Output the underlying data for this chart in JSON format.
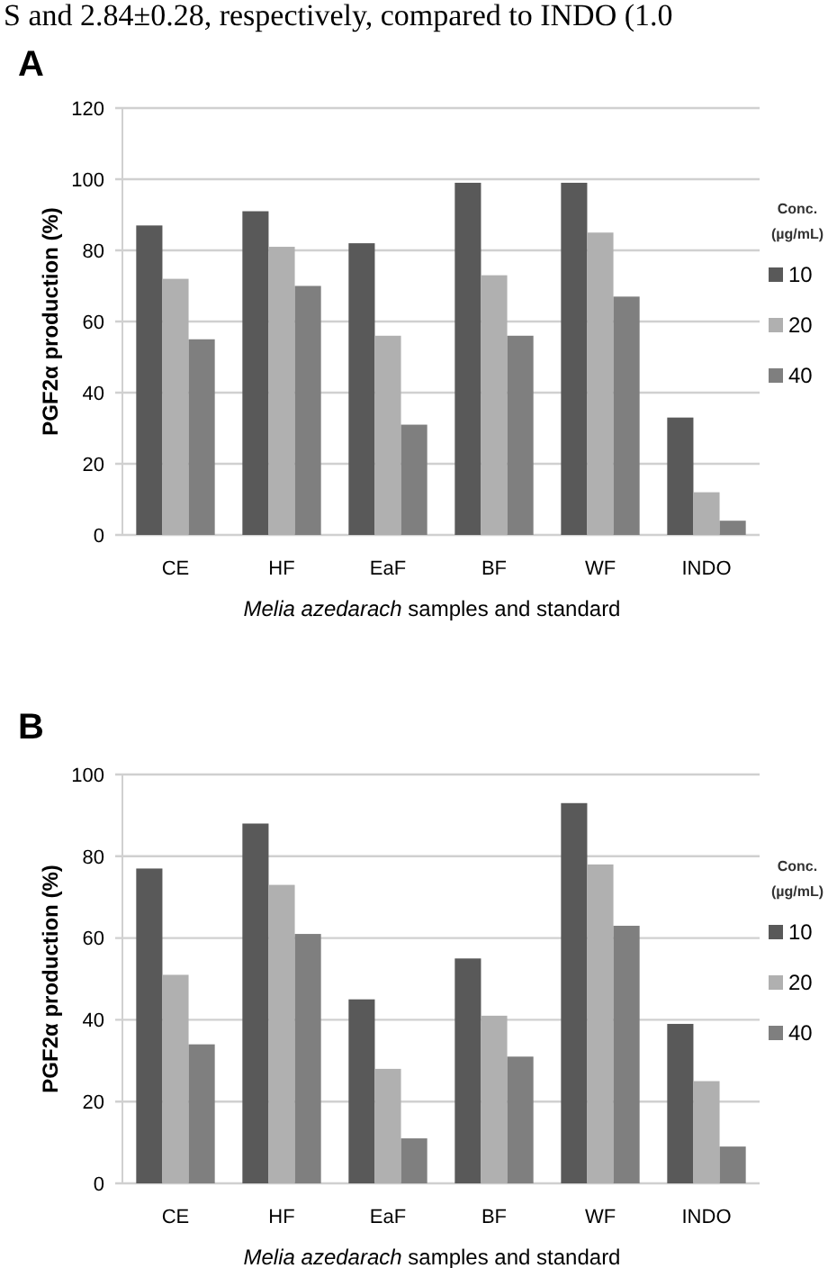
{
  "chart_data": [
    {
      "type": "bar",
      "title": "A",
      "annotations": [
        "S and 2.84±0.28, respectively, compared to INDO (1.0"
      ],
      "xlabel": "Melia azedarach samples and standard",
      "ylabel": "PGF2α production (%)",
      "legend_title": "Conc. (µg/mL)",
      "categories": [
        "CE",
        "HF",
        "EaF",
        "BF",
        "WF",
        "INDO"
      ],
      "series": [
        {
          "name": "10",
          "color": "#595959",
          "values": [
            87,
            91,
            82,
            99,
            99,
            33
          ]
        },
        {
          "name": "20",
          "color": "#b0b0b0",
          "values": [
            72,
            81,
            56,
            73,
            85,
            12
          ]
        },
        {
          "name": "40",
          "color": "#7f7f7f",
          "values": [
            55,
            70,
            31,
            56,
            67,
            4
          ]
        }
      ],
      "ylim": [
        0,
        120
      ],
      "yticks": [
        0,
        20,
        40,
        60,
        80,
        100,
        120
      ],
      "grid": "y",
      "legend": "right"
    },
    {
      "type": "bar",
      "title": "B",
      "xlabel": "Melia azedarach samples and standard",
      "ylabel": "PGF2α production (%)",
      "legend_title": "Conc. (µg/mL)",
      "categories": [
        "CE",
        "HF",
        "EaF",
        "BF",
        "WF",
        "INDO"
      ],
      "series": [
        {
          "name": "10",
          "color": "#595959",
          "values": [
            77,
            88,
            45,
            55,
            93,
            39
          ]
        },
        {
          "name": "20",
          "color": "#b0b0b0",
          "values": [
            51,
            73,
            28,
            41,
            78,
            25
          ]
        },
        {
          "name": "40",
          "color": "#7f7f7f",
          "values": [
            34,
            61,
            11,
            31,
            63,
            9
          ]
        }
      ],
      "ylim": [
        0,
        100
      ],
      "yticks": [
        0,
        20,
        40,
        60,
        80,
        100
      ],
      "grid": "y",
      "legend": "right"
    }
  ]
}
